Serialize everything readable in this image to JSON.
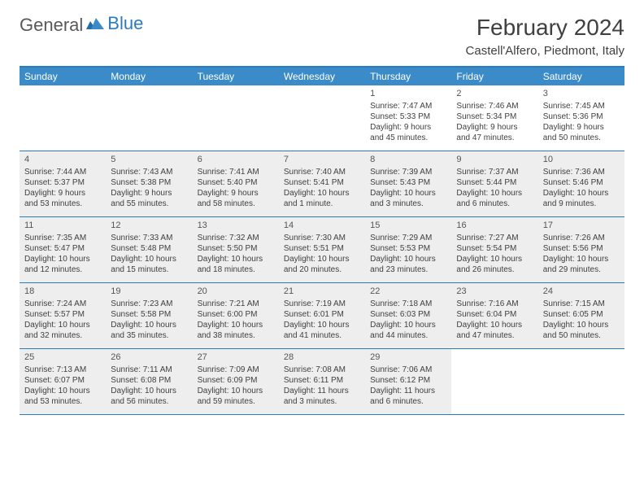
{
  "logo": {
    "text1": "General",
    "text2": "Blue"
  },
  "title": "February 2024",
  "location": "Castell'Alfero, Piedmont, Italy",
  "day_names": [
    "Sunday",
    "Monday",
    "Tuesday",
    "Wednesday",
    "Thursday",
    "Friday",
    "Saturday"
  ],
  "colors": {
    "header_bg": "#3b8bc8",
    "border": "#2b7bbf",
    "shade": "#eeeeee",
    "text": "#404040"
  },
  "weeks": [
    [
      {
        "day": "",
        "sunrise": "",
        "sunset": "",
        "daylight": "",
        "shaded": false
      },
      {
        "day": "",
        "sunrise": "",
        "sunset": "",
        "daylight": "",
        "shaded": false
      },
      {
        "day": "",
        "sunrise": "",
        "sunset": "",
        "daylight": "",
        "shaded": false
      },
      {
        "day": "",
        "sunrise": "",
        "sunset": "",
        "daylight": "",
        "shaded": false
      },
      {
        "day": "1",
        "sunrise": "Sunrise: 7:47 AM",
        "sunset": "Sunset: 5:33 PM",
        "daylight": "Daylight: 9 hours and 45 minutes.",
        "shaded": false
      },
      {
        "day": "2",
        "sunrise": "Sunrise: 7:46 AM",
        "sunset": "Sunset: 5:34 PM",
        "daylight": "Daylight: 9 hours and 47 minutes.",
        "shaded": false
      },
      {
        "day": "3",
        "sunrise": "Sunrise: 7:45 AM",
        "sunset": "Sunset: 5:36 PM",
        "daylight": "Daylight: 9 hours and 50 minutes.",
        "shaded": false
      }
    ],
    [
      {
        "day": "4",
        "sunrise": "Sunrise: 7:44 AM",
        "sunset": "Sunset: 5:37 PM",
        "daylight": "Daylight: 9 hours and 53 minutes.",
        "shaded": true
      },
      {
        "day": "5",
        "sunrise": "Sunrise: 7:43 AM",
        "sunset": "Sunset: 5:38 PM",
        "daylight": "Daylight: 9 hours and 55 minutes.",
        "shaded": true
      },
      {
        "day": "6",
        "sunrise": "Sunrise: 7:41 AM",
        "sunset": "Sunset: 5:40 PM",
        "daylight": "Daylight: 9 hours and 58 minutes.",
        "shaded": true
      },
      {
        "day": "7",
        "sunrise": "Sunrise: 7:40 AM",
        "sunset": "Sunset: 5:41 PM",
        "daylight": "Daylight: 10 hours and 1 minute.",
        "shaded": true
      },
      {
        "day": "8",
        "sunrise": "Sunrise: 7:39 AM",
        "sunset": "Sunset: 5:43 PM",
        "daylight": "Daylight: 10 hours and 3 minutes.",
        "shaded": true
      },
      {
        "day": "9",
        "sunrise": "Sunrise: 7:37 AM",
        "sunset": "Sunset: 5:44 PM",
        "daylight": "Daylight: 10 hours and 6 minutes.",
        "shaded": true
      },
      {
        "day": "10",
        "sunrise": "Sunrise: 7:36 AM",
        "sunset": "Sunset: 5:46 PM",
        "daylight": "Daylight: 10 hours and 9 minutes.",
        "shaded": true
      }
    ],
    [
      {
        "day": "11",
        "sunrise": "Sunrise: 7:35 AM",
        "sunset": "Sunset: 5:47 PM",
        "daylight": "Daylight: 10 hours and 12 minutes.",
        "shaded": true
      },
      {
        "day": "12",
        "sunrise": "Sunrise: 7:33 AM",
        "sunset": "Sunset: 5:48 PM",
        "daylight": "Daylight: 10 hours and 15 minutes.",
        "shaded": true
      },
      {
        "day": "13",
        "sunrise": "Sunrise: 7:32 AM",
        "sunset": "Sunset: 5:50 PM",
        "daylight": "Daylight: 10 hours and 18 minutes.",
        "shaded": true
      },
      {
        "day": "14",
        "sunrise": "Sunrise: 7:30 AM",
        "sunset": "Sunset: 5:51 PM",
        "daylight": "Daylight: 10 hours and 20 minutes.",
        "shaded": true
      },
      {
        "day": "15",
        "sunrise": "Sunrise: 7:29 AM",
        "sunset": "Sunset: 5:53 PM",
        "daylight": "Daylight: 10 hours and 23 minutes.",
        "shaded": true
      },
      {
        "day": "16",
        "sunrise": "Sunrise: 7:27 AM",
        "sunset": "Sunset: 5:54 PM",
        "daylight": "Daylight: 10 hours and 26 minutes.",
        "shaded": true
      },
      {
        "day": "17",
        "sunrise": "Sunrise: 7:26 AM",
        "sunset": "Sunset: 5:56 PM",
        "daylight": "Daylight: 10 hours and 29 minutes.",
        "shaded": true
      }
    ],
    [
      {
        "day": "18",
        "sunrise": "Sunrise: 7:24 AM",
        "sunset": "Sunset: 5:57 PM",
        "daylight": "Daylight: 10 hours and 32 minutes.",
        "shaded": true
      },
      {
        "day": "19",
        "sunrise": "Sunrise: 7:23 AM",
        "sunset": "Sunset: 5:58 PM",
        "daylight": "Daylight: 10 hours and 35 minutes.",
        "shaded": true
      },
      {
        "day": "20",
        "sunrise": "Sunrise: 7:21 AM",
        "sunset": "Sunset: 6:00 PM",
        "daylight": "Daylight: 10 hours and 38 minutes.",
        "shaded": true
      },
      {
        "day": "21",
        "sunrise": "Sunrise: 7:19 AM",
        "sunset": "Sunset: 6:01 PM",
        "daylight": "Daylight: 10 hours and 41 minutes.",
        "shaded": true
      },
      {
        "day": "22",
        "sunrise": "Sunrise: 7:18 AM",
        "sunset": "Sunset: 6:03 PM",
        "daylight": "Daylight: 10 hours and 44 minutes.",
        "shaded": true
      },
      {
        "day": "23",
        "sunrise": "Sunrise: 7:16 AM",
        "sunset": "Sunset: 6:04 PM",
        "daylight": "Daylight: 10 hours and 47 minutes.",
        "shaded": true
      },
      {
        "day": "24",
        "sunrise": "Sunrise: 7:15 AM",
        "sunset": "Sunset: 6:05 PM",
        "daylight": "Daylight: 10 hours and 50 minutes.",
        "shaded": true
      }
    ],
    [
      {
        "day": "25",
        "sunrise": "Sunrise: 7:13 AM",
        "sunset": "Sunset: 6:07 PM",
        "daylight": "Daylight: 10 hours and 53 minutes.",
        "shaded": true
      },
      {
        "day": "26",
        "sunrise": "Sunrise: 7:11 AM",
        "sunset": "Sunset: 6:08 PM",
        "daylight": "Daylight: 10 hours and 56 minutes.",
        "shaded": true
      },
      {
        "day": "27",
        "sunrise": "Sunrise: 7:09 AM",
        "sunset": "Sunset: 6:09 PM",
        "daylight": "Daylight: 10 hours and 59 minutes.",
        "shaded": true
      },
      {
        "day": "28",
        "sunrise": "Sunrise: 7:08 AM",
        "sunset": "Sunset: 6:11 PM",
        "daylight": "Daylight: 11 hours and 3 minutes.",
        "shaded": true
      },
      {
        "day": "29",
        "sunrise": "Sunrise: 7:06 AM",
        "sunset": "Sunset: 6:12 PM",
        "daylight": "Daylight: 11 hours and 6 minutes.",
        "shaded": true
      },
      {
        "day": "",
        "sunrise": "",
        "sunset": "",
        "daylight": "",
        "shaded": false
      },
      {
        "day": "",
        "sunrise": "",
        "sunset": "",
        "daylight": "",
        "shaded": false
      }
    ]
  ]
}
